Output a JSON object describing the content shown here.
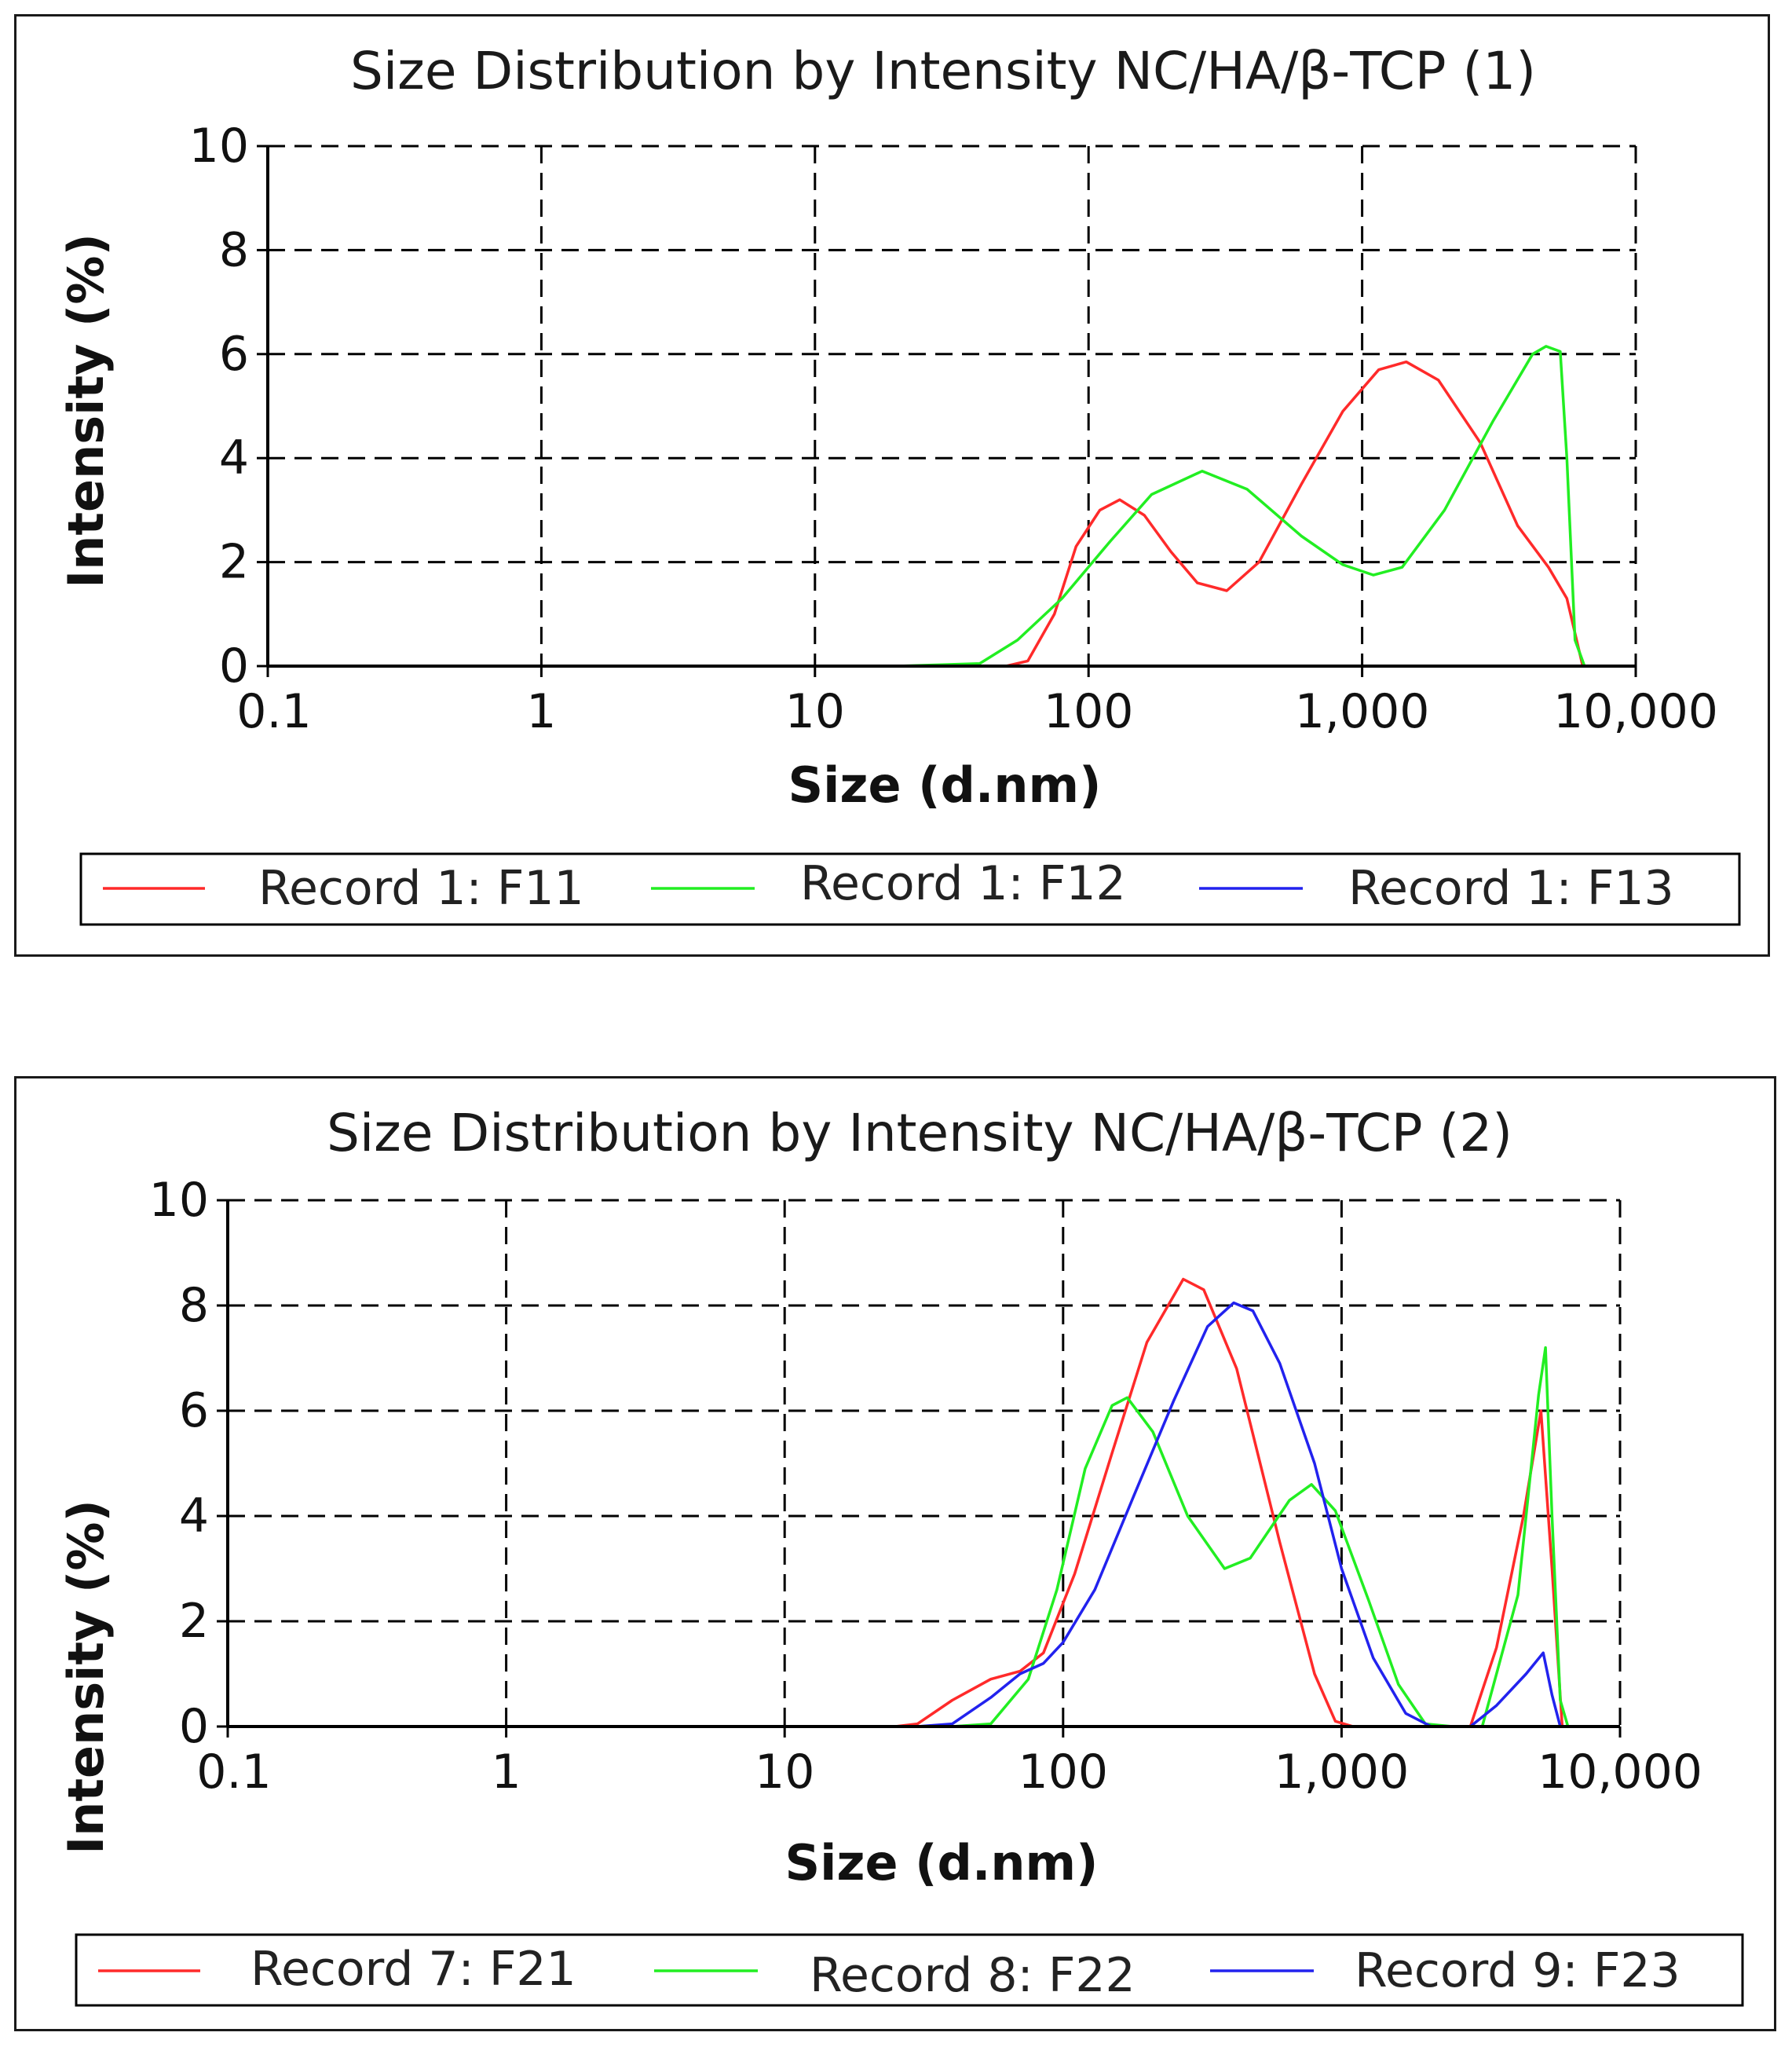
{
  "chart_data": [
    {
      "type": "line",
      "title": "Size Distribution by Intensity NC/HA/β-TCP (1)",
      "xlabel": "Size (d.nm)",
      "ylabel": "Intensity (%)",
      "xscale": "log",
      "xlim": [
        0.1,
        10000
      ],
      "ylim": [
        0,
        10
      ],
      "xticks": [
        {
          "value": 0.1,
          "label": "0.1"
        },
        {
          "value": 1,
          "label": "1"
        },
        {
          "value": 10,
          "label": "10"
        },
        {
          "value": 100,
          "label": "100"
        },
        {
          "value": 1000,
          "label": "1,000"
        },
        {
          "value": 10000,
          "label": "10,000"
        }
      ],
      "yticks": [
        {
          "value": 0,
          "label": "0"
        },
        {
          "value": 2,
          "label": "2"
        },
        {
          "value": 4,
          "label": "4"
        },
        {
          "value": 6,
          "label": "6"
        },
        {
          "value": 8,
          "label": "8"
        },
        {
          "value": 10,
          "label": "10"
        }
      ],
      "grid": true,
      "legend_position": "bottom",
      "series": [
        {
          "name": "Record 1: F11",
          "color": "#ff2a2a",
          "points": [
            [
              0.4,
              0
            ],
            [
              20,
              0
            ],
            [
              50,
              0
            ],
            [
              60,
              0.1
            ],
            [
              75,
              1.0
            ],
            [
              90,
              2.3
            ],
            [
              110,
              3.0
            ],
            [
              130,
              3.2
            ],
            [
              160,
              2.9
            ],
            [
              200,
              2.2
            ],
            [
              250,
              1.6
            ],
            [
              320,
              1.45
            ],
            [
              420,
              2.0
            ],
            [
              600,
              3.5
            ],
            [
              850,
              4.9
            ],
            [
              1150,
              5.7
            ],
            [
              1450,
              5.85
            ],
            [
              1900,
              5.5
            ],
            [
              2700,
              4.3
            ],
            [
              3700,
              2.7
            ],
            [
              4800,
              1.9
            ],
            [
              5600,
              1.3
            ],
            [
              6400,
              0
            ],
            [
              10000,
              0
            ]
          ]
        },
        {
          "name": "Record 1: F12",
          "color": "#22ee22",
          "points": [
            [
              0.4,
              0
            ],
            [
              20,
              0
            ],
            [
              40,
              0.05
            ],
            [
              55,
              0.5
            ],
            [
              80,
              1.3
            ],
            [
              120,
              2.4
            ],
            [
              170,
              3.3
            ],
            [
              260,
              3.75
            ],
            [
              380,
              3.4
            ],
            [
              600,
              2.5
            ],
            [
              850,
              1.95
            ],
            [
              1100,
              1.75
            ],
            [
              1400,
              1.9
            ],
            [
              2000,
              3.0
            ],
            [
              3000,
              4.7
            ],
            [
              4200,
              6.0
            ],
            [
              4700,
              6.15
            ],
            [
              5300,
              6.05
            ],
            [
              5600,
              4.0
            ],
            [
              6000,
              0.5
            ],
            [
              6500,
              0
            ],
            [
              10000,
              0
            ]
          ]
        },
        {
          "name": "Record 1: F13",
          "color": "#2222ee",
          "points": []
        }
      ]
    },
    {
      "type": "line",
      "title": "Size Distribution by Intensity NC/HA/β-TCP (2)",
      "xlabel": "Size (d.nm)",
      "ylabel": "Intensity (%)",
      "xscale": "log",
      "xlim": [
        0.1,
        10000
      ],
      "ylim": [
        0,
        10
      ],
      "xticks": [
        {
          "value": 0.1,
          "label": "0.1"
        },
        {
          "value": 1,
          "label": "1"
        },
        {
          "value": 10,
          "label": "10"
        },
        {
          "value": 100,
          "label": "100"
        },
        {
          "value": 1000,
          "label": "1,000"
        },
        {
          "value": 10000,
          "label": "10,000"
        }
      ],
      "yticks": [
        {
          "value": 0,
          "label": "0"
        },
        {
          "value": 2,
          "label": "2"
        },
        {
          "value": 4,
          "label": "4"
        },
        {
          "value": 6,
          "label": "6"
        },
        {
          "value": 8,
          "label": "8"
        },
        {
          "value": 10,
          "label": "10"
        }
      ],
      "grid": true,
      "legend_position": "bottom",
      "series": [
        {
          "name": "Record 7: F21",
          "color": "#ff2a2a",
          "points": [
            [
              0.4,
              0
            ],
            [
              25,
              0
            ],
            [
              30,
              0.05
            ],
            [
              40,
              0.5
            ],
            [
              55,
              0.9
            ],
            [
              70,
              1.05
            ],
            [
              85,
              1.4
            ],
            [
              110,
              2.9
            ],
            [
              150,
              5.2
            ],
            [
              200,
              7.3
            ],
            [
              270,
              8.5
            ],
            [
              320,
              8.3
            ],
            [
              420,
              6.8
            ],
            [
              600,
              3.5
            ],
            [
              800,
              1.0
            ],
            [
              950,
              0.1
            ],
            [
              1100,
              0
            ],
            [
              2000,
              0
            ],
            [
              2900,
              0
            ],
            [
              3600,
              1.5
            ],
            [
              4500,
              4.0
            ],
            [
              5200,
              6.0
            ],
            [
              5700,
              3.0
            ],
            [
              6200,
              0
            ],
            [
              9000,
              0
            ]
          ]
        },
        {
          "name": "Record 8: F22",
          "color": "#22ee22",
          "points": [
            [
              0.4,
              0
            ],
            [
              40,
              0
            ],
            [
              55,
              0.05
            ],
            [
              75,
              0.9
            ],
            [
              95,
              2.6
            ],
            [
              120,
              4.9
            ],
            [
              150,
              6.1
            ],
            [
              170,
              6.25
            ],
            [
              210,
              5.6
            ],
            [
              280,
              4.0
            ],
            [
              380,
              3.0
            ],
            [
              470,
              3.2
            ],
            [
              650,
              4.3
            ],
            [
              780,
              4.6
            ],
            [
              950,
              4.1
            ],
            [
              1250,
              2.4
            ],
            [
              1600,
              0.8
            ],
            [
              2000,
              0.05
            ],
            [
              2500,
              0
            ],
            [
              3200,
              0
            ],
            [
              4300,
              2.5
            ],
            [
              5100,
              6.3
            ],
            [
              5400,
              7.2
            ],
            [
              5700,
              4.0
            ],
            [
              6100,
              0.5
            ],
            [
              6500,
              0
            ],
            [
              9000,
              0
            ]
          ]
        },
        {
          "name": "Record 9: F23",
          "color": "#2222ee",
          "points": [
            [
              0.4,
              0
            ],
            [
              30,
              0
            ],
            [
              40,
              0.05
            ],
            [
              55,
              0.55
            ],
            [
              70,
              1.0
            ],
            [
              85,
              1.2
            ],
            [
              100,
              1.6
            ],
            [
              130,
              2.6
            ],
            [
              180,
              4.4
            ],
            [
              250,
              6.2
            ],
            [
              330,
              7.6
            ],
            [
              410,
              8.05
            ],
            [
              480,
              7.9
            ],
            [
              600,
              6.9
            ],
            [
              800,
              5.0
            ],
            [
              1000,
              3.0
            ],
            [
              1300,
              1.3
            ],
            [
              1700,
              0.25
            ],
            [
              2100,
              0
            ],
            [
              2900,
              0
            ],
            [
              3600,
              0.4
            ],
            [
              4600,
              1.0
            ],
            [
              5300,
              1.4
            ],
            [
              5700,
              0.6
            ],
            [
              6100,
              0
            ],
            [
              9000,
              0
            ]
          ]
        }
      ]
    }
  ]
}
